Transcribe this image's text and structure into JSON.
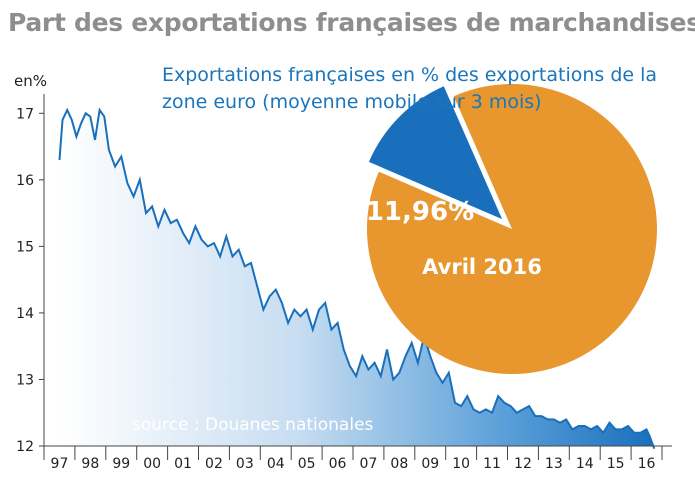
{
  "title": "Part des exportations françaises de marchandises",
  "chart_data": [
    {
      "type": "area",
      "ylabel": "en%",
      "ylim": [
        12,
        17.2
      ],
      "yticks": [
        12,
        13,
        14,
        15,
        16,
        17
      ],
      "categories": [
        "97",
        "98",
        "99",
        "00",
        "01",
        "02",
        "03",
        "04",
        "05",
        "06",
        "07",
        "08",
        "09",
        "10",
        "11",
        "12",
        "13",
        "14",
        "15",
        "16"
      ],
      "x": [
        1997.0,
        1997.1,
        1997.25,
        1997.4,
        1997.55,
        1997.7,
        1997.85,
        1998.0,
        1998.15,
        1998.3,
        1998.45,
        1998.6,
        1998.8,
        1999.0,
        1999.2,
        1999.4,
        1999.6,
        1999.8,
        2000.0,
        2000.2,
        2000.4,
        2000.6,
        2000.8,
        2001.0,
        2001.2,
        2001.4,
        2001.6,
        2001.8,
        2002.0,
        2002.2,
        2002.4,
        2002.6,
        2002.8,
        2003.0,
        2003.2,
        2003.4,
        2003.6,
        2003.8,
        2004.0,
        2004.2,
        2004.4,
        2004.6,
        2004.8,
        2005.0,
        2005.2,
        2005.4,
        2005.6,
        2005.8,
        2006.0,
        2006.2,
        2006.4,
        2006.6,
        2006.8,
        2007.0,
        2007.2,
        2007.4,
        2007.6,
        2007.8,
        2008.0,
        2008.2,
        2008.4,
        2008.6,
        2008.8,
        2009.0,
        2009.2,
        2009.4,
        2009.6,
        2009.8,
        2010.0,
        2010.2,
        2010.4,
        2010.6,
        2010.8,
        2011.0,
        2011.2,
        2011.4,
        2011.6,
        2011.8,
        2012.0,
        2012.2,
        2012.4,
        2012.6,
        2012.8,
        2013.0,
        2013.2,
        2013.4,
        2013.6,
        2013.8,
        2014.0,
        2014.2,
        2014.4,
        2014.6,
        2014.8,
        2015.0,
        2015.2,
        2015.4,
        2015.6,
        2015.8,
        2016.0,
        2016.1,
        2016.25
      ],
      "series": [
        {
          "values": [
            16.3,
            16.9,
            17.05,
            16.9,
            16.65,
            16.85,
            17.0,
            16.95,
            16.6,
            17.05,
            16.95,
            16.45,
            16.2,
            16.35,
            15.95,
            15.75,
            16.0,
            15.5,
            15.6,
            15.3,
            15.55,
            15.35,
            15.4,
            15.2,
            15.05,
            15.3,
            15.1,
            15.0,
            15.05,
            14.85,
            15.15,
            14.85,
            14.95,
            14.7,
            14.75,
            14.4,
            14.05,
            14.25,
            14.35,
            14.15,
            13.85,
            14.05,
            13.95,
            14.05,
            13.75,
            14.05,
            14.15,
            13.75,
            13.85,
            13.45,
            13.2,
            13.05,
            13.35,
            13.15,
            13.25,
            13.05,
            13.45,
            13.0,
            13.1,
            13.35,
            13.55,
            13.25,
            13.65,
            13.35,
            13.1,
            12.95,
            13.1,
            12.65,
            12.6,
            12.75,
            12.55,
            12.5,
            12.55,
            12.5,
            12.75,
            12.65,
            12.6,
            12.5,
            12.55,
            12.6,
            12.45,
            12.45,
            12.4,
            12.4,
            12.35,
            12.4,
            12.25,
            12.3,
            12.3,
            12.25,
            12.3,
            12.2,
            12.35,
            12.25,
            12.25,
            12.3,
            12.2,
            12.2,
            12.25,
            12.15,
            11.96
          ]
        }
      ],
      "annotation": "source : Douanes nationales"
    },
    {
      "type": "pie",
      "title": "Exportations françaises en % des exportations de la zone euro (moyenne mobile sur 3 mois)",
      "slices": [
        {
          "label": "11,96%",
          "value": 11.96,
          "color": "#1a6fbd"
        },
        {
          "label": "Avril 2016",
          "value": 88.04,
          "color": "#e8962e"
        }
      ]
    }
  ]
}
